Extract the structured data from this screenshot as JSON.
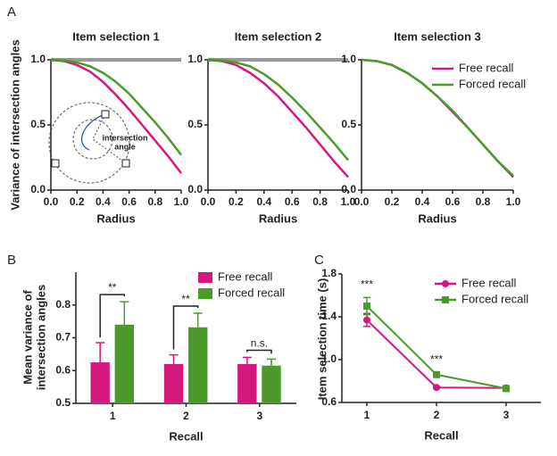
{
  "panel_labels": [
    "A",
    "B",
    "C"
  ],
  "chart_data": [
    {
      "type": "line",
      "title": "Item selection 1",
      "x_label": "Radius",
      "y_label": "Variance of intersection angles",
      "x": [
        0,
        0.1,
        0.2,
        0.3,
        0.4,
        0.5,
        0.6,
        0.7,
        0.8,
        0.9,
        1.0
      ],
      "series": [
        {
          "color": "#d4187d",
          "values": [
            1,
            0.99,
            0.96,
            0.91,
            0.83,
            0.73,
            0.62,
            0.5,
            0.38,
            0.26,
            0.13
          ]
        },
        {
          "color": "#4c9a2c",
          "values": [
            1,
            0.995,
            0.98,
            0.95,
            0.9,
            0.83,
            0.74,
            0.63,
            0.52,
            0.4,
            0.27
          ]
        }
      ],
      "hline": 1,
      "hline_color": "#999999",
      "inset_label": [
        "intersection",
        "angle"
      ],
      "xlim": [
        0,
        1
      ],
      "xticks": [
        {
          "value": 0,
          "label": "0.0"
        },
        0.2,
        0.4,
        0.6,
        0.8,
        {
          "value": 1,
          "label": "1.0"
        }
      ],
      "ylim": [
        0,
        1
      ],
      "yticks": [
        {
          "value": 0,
          "label": "0.0"
        },
        0.5,
        {
          "value": 1,
          "label": "1.0"
        }
      ]
    },
    {
      "type": "line",
      "title": "Item selection 2",
      "x_label": "Radius",
      "x": [
        0,
        0.1,
        0.2,
        0.3,
        0.4,
        0.5,
        0.6,
        0.7,
        0.8,
        0.9,
        1.0
      ],
      "series": [
        {
          "color": "#d4187d",
          "values": [
            1,
            0.99,
            0.96,
            0.9,
            0.82,
            0.72,
            0.6,
            0.48,
            0.35,
            0.22,
            0.1
          ]
        },
        {
          "color": "#4c9a2c",
          "values": [
            1,
            0.995,
            0.98,
            0.95,
            0.89,
            0.81,
            0.71,
            0.6,
            0.48,
            0.36,
            0.23
          ]
        }
      ],
      "hline": 1,
      "hline_color": "#999999",
      "xlim": [
        0,
        1
      ],
      "xticks": [
        {
          "value": 0,
          "label": "0.0"
        },
        0.2,
        0.4,
        0.6,
        0.8,
        {
          "value": 1,
          "label": "1.0"
        }
      ],
      "ylim": [
        0,
        1
      ],
      "yticks": [
        {
          "value": 0,
          "label": "0.0"
        },
        0.5,
        {
          "value": 1,
          "label": "1.0"
        }
      ]
    },
    {
      "type": "line",
      "title": "Item selection 3",
      "x_label": "Radius",
      "legend": "upper right",
      "x": [
        0,
        0.1,
        0.2,
        0.3,
        0.4,
        0.5,
        0.6,
        0.7,
        0.8,
        0.9,
        1.0
      ],
      "series": [
        {
          "name": "Free recall",
          "color": "#d4187d",
          "values": [
            1,
            0.99,
            0.96,
            0.9,
            0.82,
            0.72,
            0.6,
            0.48,
            0.35,
            0.22,
            0.1
          ]
        },
        {
          "name": "Forced recall",
          "color": "#4c9a2c",
          "values": [
            1,
            0.99,
            0.96,
            0.9,
            0.82,
            0.72,
            0.61,
            0.48,
            0.35,
            0.22,
            0.11
          ]
        }
      ],
      "xlim": [
        0,
        1
      ],
      "xticks": [
        {
          "value": 0,
          "label": "0.0"
        },
        0.2,
        0.4,
        0.6,
        0.8,
        {
          "value": 1,
          "label": "1.0"
        }
      ],
      "ylim": [
        0,
        1
      ],
      "yticks": [
        {
          "value": 0,
          "label": "0.0"
        },
        0.5,
        {
          "value": 1,
          "label": "1.0"
        }
      ]
    },
    {
      "type": "bar",
      "x_label": "Recall",
      "y_label": [
        "Mean variance of",
        "intersection angles"
      ],
      "legend": "upper right",
      "categories": [
        "1",
        "2",
        "3"
      ],
      "series": [
        {
          "name": "Free recall",
          "color": "#d4187d",
          "values": [
            0.625,
            0.62,
            0.62
          ],
          "errors": [
            0.06,
            0.028,
            0.02
          ]
        },
        {
          "name": "Forced recall",
          "color": "#4c9a2c",
          "values": [
            0.74,
            0.732,
            0.615
          ],
          "errors": [
            0.07,
            0.043,
            0.02
          ]
        }
      ],
      "significance": [
        "**",
        "**",
        "n.s."
      ],
      "ylim": [
        0.5,
        0.9
      ],
      "yticks": [
        0.5,
        0.6,
        0.7,
        0.8
      ]
    },
    {
      "type": "line",
      "x_label": "Recall",
      "y_label": "Item selection time (s)",
      "legend": "upper right",
      "categories": [
        "1",
        "2",
        "3"
      ],
      "series": [
        {
          "name": "Free recall",
          "color": "#d4187d",
          "marker": "circle",
          "values": [
            1.37,
            0.74,
            0.735
          ],
          "errors": [
            0.06,
            0.01,
            0.01
          ]
        },
        {
          "name": "Forced recall",
          "color": "#4c9a2c",
          "marker": "square",
          "values": [
            1.5,
            0.86,
            0.73
          ],
          "errors": [
            0.08,
            0.02,
            0.01
          ]
        }
      ],
      "significance": [
        "***",
        "***",
        null
      ],
      "ylim": [
        0.6,
        1.8
      ],
      "yticks": [
        0.6,
        {
          "value": 1,
          "label": "1.0"
        },
        1.4,
        1.8
      ]
    }
  ]
}
